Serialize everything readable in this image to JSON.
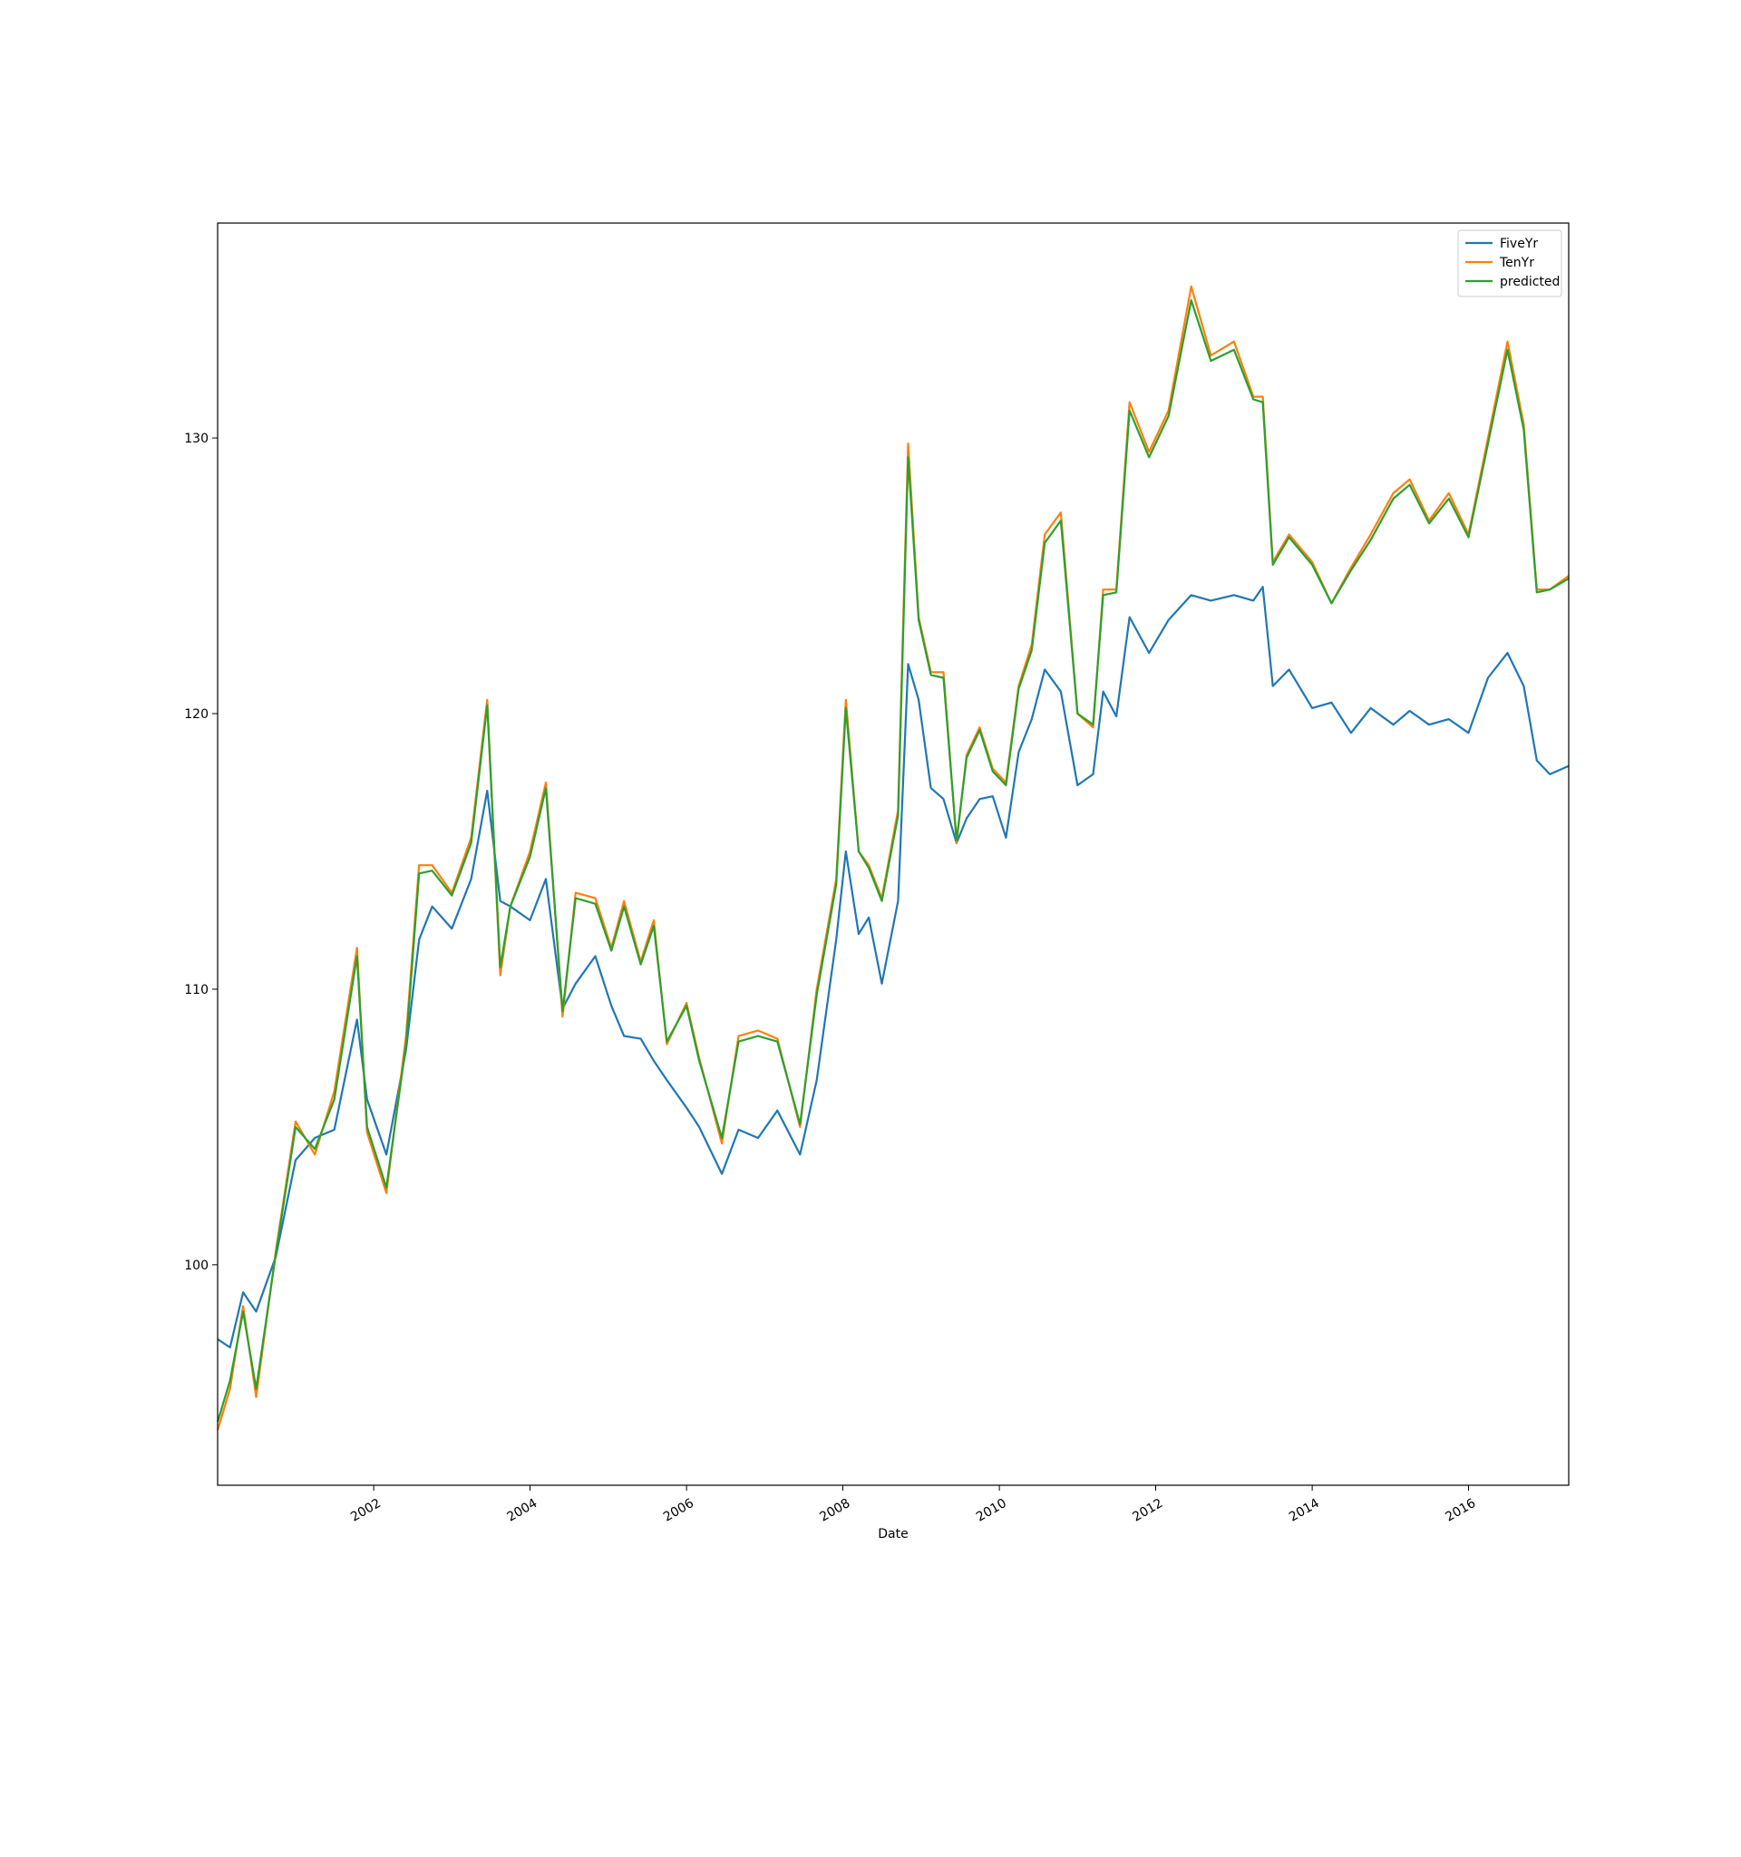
{
  "chart_data": {
    "type": "line",
    "title": "",
    "xlabel": "Date",
    "ylabel": "",
    "xlim": [
      "2000-01-03",
      "2017-04-13"
    ],
    "ylim": [
      92,
      137.8
    ],
    "x_ticks": [
      "2002",
      "2004",
      "2006",
      "2008",
      "2010",
      "2012",
      "2014",
      "2016"
    ],
    "y_ticks": [
      "100",
      "110",
      "120",
      "130"
    ],
    "grid": false,
    "legend_position": "top-right",
    "colors": {
      "FiveYr": "#1f77b4",
      "TenYr": "#ff7f0e",
      "predicted": "#2ca02c"
    },
    "series": [
      {
        "name": "FiveYr",
        "color": "#1f77b4",
        "x": [
          "2000-01-03",
          "2000-03-01",
          "2000-05-01",
          "2000-07-01",
          "2000-10-01",
          "2001-01-01",
          "2001-04-01",
          "2001-07-01",
          "2001-10-15",
          "2001-12-01",
          "2002-03-01",
          "2002-06-01",
          "2002-08-01",
          "2002-10-01",
          "2003-01-01",
          "2003-04-01",
          "2003-06-15",
          "2003-08-15",
          "2003-10-01",
          "2004-01-01",
          "2004-03-15",
          "2004-06-01",
          "2004-08-01",
          "2004-11-01",
          "2005-01-15",
          "2005-03-15",
          "2005-06-01",
          "2005-08-01",
          "2005-10-01",
          "2006-01-01",
          "2006-03-01",
          "2006-06-15",
          "2006-09-01",
          "2006-12-01",
          "2007-03-01",
          "2007-06-15",
          "2007-09-01",
          "2007-12-01",
          "2008-01-15",
          "2008-03-15",
          "2008-05-01",
          "2008-07-01",
          "2008-09-15",
          "2008-11-01",
          "2008-12-20",
          "2009-02-15",
          "2009-04-15",
          "2009-06-15",
          "2009-08-01",
          "2009-10-01",
          "2009-12-01",
          "2010-02-01",
          "2010-04-01",
          "2010-06-01",
          "2010-08-01",
          "2010-10-15",
          "2011-01-01",
          "2011-03-15",
          "2011-05-01",
          "2011-07-01",
          "2011-09-01",
          "2011-12-01",
          "2012-03-01",
          "2012-06-15",
          "2012-09-15",
          "2013-01-01",
          "2013-04-01",
          "2013-05-15",
          "2013-07-01",
          "2013-09-15",
          "2014-01-01",
          "2014-04-01",
          "2014-07-01",
          "2014-10-01",
          "2015-01-15",
          "2015-04-01",
          "2015-07-01",
          "2015-10-01",
          "2016-01-01",
          "2016-04-01",
          "2016-07-01",
          "2016-09-15",
          "2016-11-15",
          "2017-01-15",
          "2017-04-13"
        ],
        "values": [
          97.3,
          97.0,
          99.0,
          98.3,
          100.3,
          103.8,
          104.6,
          104.9,
          108.9,
          106.0,
          104.0,
          107.8,
          111.8,
          113.0,
          112.2,
          114.0,
          117.2,
          113.2,
          113.0,
          112.5,
          114.0,
          109.3,
          110.2,
          111.2,
          109.4,
          108.3,
          108.2,
          107.4,
          106.7,
          105.7,
          105.0,
          103.3,
          104.9,
          104.6,
          105.6,
          104.0,
          106.7,
          111.8,
          115.0,
          112.0,
          112.6,
          110.2,
          113.2,
          121.8,
          120.5,
          117.3,
          116.9,
          115.3,
          116.2,
          116.9,
          117.0,
          115.5,
          118.6,
          119.8,
          121.6,
          120.8,
          117.4,
          117.8,
          120.8,
          119.9,
          123.5,
          122.2,
          123.4,
          124.3,
          124.1,
          124.3,
          124.1,
          124.6,
          121.0,
          121.6,
          120.2,
          120.4,
          119.3,
          120.2,
          119.6,
          120.1,
          119.6,
          119.8,
          119.3,
          121.3,
          122.2,
          121.0,
          118.3,
          117.8,
          118.1
        ]
      },
      {
        "name": "TenYr",
        "color": "#ff7f0e",
        "x": [
          "2000-01-03",
          "2000-03-01",
          "2000-05-01",
          "2000-07-01",
          "2000-10-01",
          "2001-01-01",
          "2001-04-01",
          "2001-07-01",
          "2001-10-15",
          "2001-12-01",
          "2002-03-01",
          "2002-06-01",
          "2002-08-01",
          "2002-10-01",
          "2003-01-01",
          "2003-04-01",
          "2003-06-15",
          "2003-08-15",
          "2003-10-01",
          "2004-01-01",
          "2004-03-15",
          "2004-06-01",
          "2004-08-01",
          "2004-11-01",
          "2005-01-15",
          "2005-03-15",
          "2005-06-01",
          "2005-08-01",
          "2005-10-01",
          "2006-01-01",
          "2006-03-01",
          "2006-06-15",
          "2006-09-01",
          "2006-12-01",
          "2007-03-01",
          "2007-06-15",
          "2007-09-01",
          "2007-12-01",
          "2008-01-15",
          "2008-03-15",
          "2008-05-01",
          "2008-07-01",
          "2008-09-15",
          "2008-11-01",
          "2008-12-20",
          "2009-02-15",
          "2009-04-15",
          "2009-06-15",
          "2009-08-01",
          "2009-10-01",
          "2009-12-01",
          "2010-02-01",
          "2010-04-01",
          "2010-06-01",
          "2010-08-01",
          "2010-10-15",
          "2011-01-01",
          "2011-03-15",
          "2011-05-01",
          "2011-07-01",
          "2011-09-01",
          "2011-12-01",
          "2012-03-01",
          "2012-06-15",
          "2012-09-15",
          "2013-01-01",
          "2013-04-01",
          "2013-05-15",
          "2013-07-01",
          "2013-09-15",
          "2014-01-01",
          "2014-04-01",
          "2014-07-01",
          "2014-10-01",
          "2015-01-15",
          "2015-04-01",
          "2015-07-01",
          "2015-10-01",
          "2016-01-01",
          "2016-04-01",
          "2016-07-01",
          "2016-09-15",
          "2016-11-15",
          "2017-01-15",
          "2017-04-13"
        ],
        "values": [
          94.0,
          95.5,
          98.5,
          95.2,
          100.5,
          105.2,
          104.0,
          106.3,
          111.5,
          104.8,
          102.6,
          108.3,
          114.5,
          114.5,
          113.5,
          115.5,
          120.5,
          110.5,
          113.0,
          115.0,
          117.5,
          109.0,
          113.5,
          113.3,
          111.5,
          113.2,
          111.0,
          112.5,
          108.0,
          109.5,
          107.5,
          104.4,
          108.3,
          108.5,
          108.2,
          105.0,
          110.0,
          114.0,
          120.5,
          115.0,
          114.5,
          113.3,
          116.5,
          129.8,
          123.5,
          121.5,
          121.5,
          115.3,
          118.5,
          119.5,
          118.0,
          117.5,
          121.0,
          122.5,
          126.5,
          127.3,
          120.0,
          119.5,
          124.5,
          124.5,
          131.3,
          129.5,
          131.0,
          135.5,
          133.0,
          133.5,
          131.5,
          131.5,
          125.5,
          126.5,
          125.5,
          124.0,
          125.3,
          126.5,
          128.0,
          128.5,
          127.0,
          128.0,
          126.5,
          130.0,
          133.5,
          130.5,
          124.5,
          124.5,
          125.0
        ]
      },
      {
        "name": "predicted",
        "color": "#2ca02c",
        "x": [
          "2000-01-03",
          "2000-03-01",
          "2000-05-01",
          "2000-07-01",
          "2000-10-01",
          "2001-01-01",
          "2001-04-01",
          "2001-07-01",
          "2001-10-15",
          "2001-12-01",
          "2002-03-01",
          "2002-06-01",
          "2002-08-01",
          "2002-10-01",
          "2003-01-01",
          "2003-04-01",
          "2003-06-15",
          "2003-08-15",
          "2003-10-01",
          "2004-01-01",
          "2004-03-15",
          "2004-06-01",
          "2004-08-01",
          "2004-11-01",
          "2005-01-15",
          "2005-03-15",
          "2005-06-01",
          "2005-08-01",
          "2005-10-01",
          "2006-01-01",
          "2006-03-01",
          "2006-06-15",
          "2006-09-01",
          "2006-12-01",
          "2007-03-01",
          "2007-06-15",
          "2007-09-01",
          "2007-12-01",
          "2008-01-15",
          "2008-03-15",
          "2008-05-01",
          "2008-07-01",
          "2008-09-15",
          "2008-11-01",
          "2008-12-20",
          "2009-02-15",
          "2009-04-15",
          "2009-06-15",
          "2009-08-01",
          "2009-10-01",
          "2009-12-01",
          "2010-02-01",
          "2010-04-01",
          "2010-06-01",
          "2010-08-01",
          "2010-10-15",
          "2011-01-01",
          "2011-03-15",
          "2011-05-01",
          "2011-07-01",
          "2011-09-01",
          "2011-12-01",
          "2012-03-01",
          "2012-06-15",
          "2012-09-15",
          "2013-01-01",
          "2013-04-01",
          "2013-05-15",
          "2013-07-01",
          "2013-09-15",
          "2014-01-01",
          "2014-04-01",
          "2014-07-01",
          "2014-10-01",
          "2015-01-15",
          "2015-04-01",
          "2015-07-01",
          "2015-10-01",
          "2016-01-01",
          "2016-04-01",
          "2016-07-01",
          "2016-09-15",
          "2016-11-15",
          "2017-01-15",
          "2017-04-13"
        ],
        "values": [
          94.3,
          95.8,
          98.3,
          95.5,
          100.4,
          105.0,
          104.2,
          106.0,
          111.2,
          105.0,
          102.8,
          108.0,
          114.2,
          114.3,
          113.4,
          115.3,
          120.3,
          110.8,
          113.0,
          114.8,
          117.3,
          109.2,
          113.3,
          113.1,
          111.4,
          113.0,
          110.9,
          112.3,
          108.1,
          109.4,
          107.4,
          104.6,
          108.1,
          108.3,
          108.1,
          105.1,
          109.8,
          113.8,
          120.2,
          115.0,
          114.4,
          113.2,
          116.3,
          129.3,
          123.4,
          121.4,
          121.3,
          115.4,
          118.4,
          119.4,
          117.9,
          117.4,
          120.9,
          122.3,
          126.2,
          127.0,
          120.0,
          119.6,
          124.3,
          124.4,
          131.0,
          129.3,
          130.8,
          135.0,
          132.8,
          133.2,
          131.4,
          131.3,
          125.4,
          126.4,
          125.4,
          124.0,
          125.2,
          126.3,
          127.8,
          128.3,
          126.9,
          127.8,
          126.4,
          129.8,
          133.2,
          130.3,
          124.4,
          124.5,
          124.9
        ]
      }
    ]
  }
}
